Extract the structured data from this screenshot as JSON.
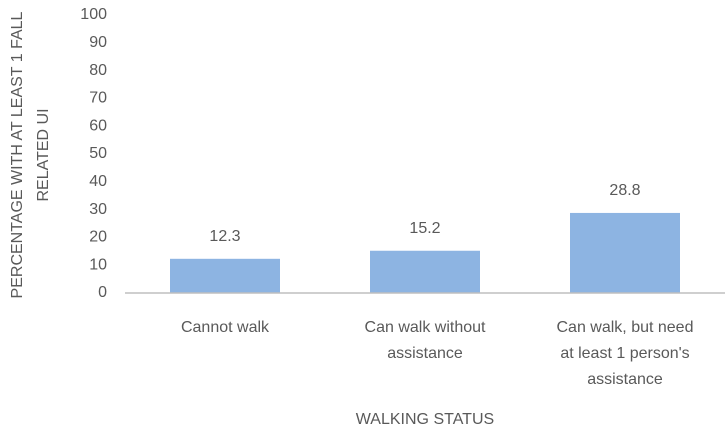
{
  "chart_data": {
    "type": "bar",
    "x_label": "WALKING STATUS",
    "y_label": [
      "PERCENTAGE WITH AT LEAST 1 FALL",
      "RELATED  UI"
    ],
    "categories": [
      "Cannot walk",
      "Can walk without assistance",
      "Can walk, but need at least 1 person's assistance"
    ],
    "values": [
      12.3,
      15.2,
      28.8
    ],
    "color": "#8db4e2",
    "ylim": [
      0,
      100
    ],
    "yticks": [
      0,
      10,
      20,
      30,
      40,
      50,
      60,
      70,
      80,
      90,
      100
    ],
    "grid": false
  }
}
